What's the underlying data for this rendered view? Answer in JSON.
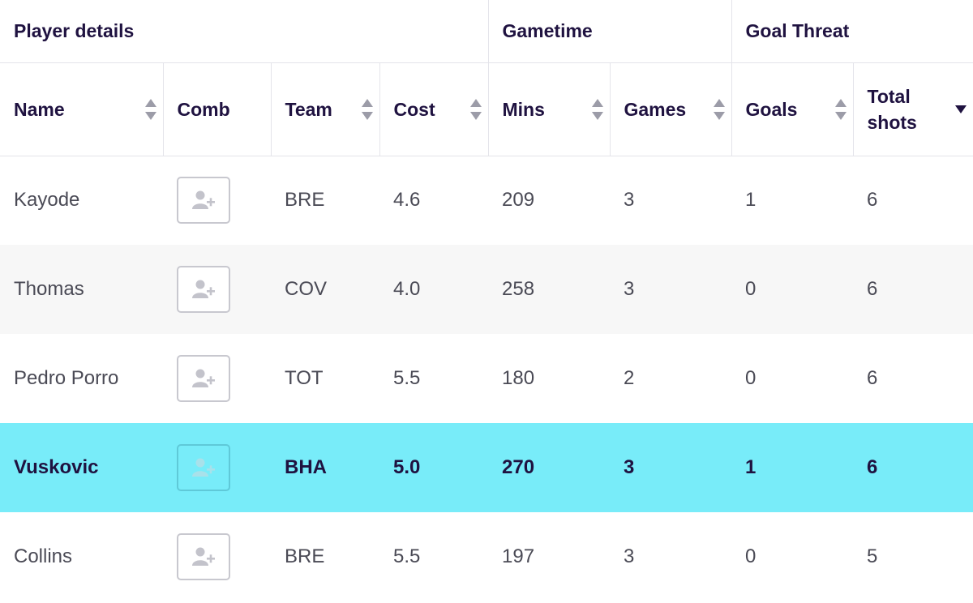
{
  "groups": {
    "player_details": "Player details",
    "gametime": "Gametime",
    "goal_threat": "Goal Threat"
  },
  "columns": {
    "name": "Name",
    "comb": "Comb",
    "team": "Team",
    "cost": "Cost",
    "mins": "Mins",
    "games": "Games",
    "goals": "Goals",
    "total_shots_line1": "Total",
    "total_shots_line2": "shots"
  },
  "sort": {
    "active_column": "total_shots",
    "direction": "descending"
  },
  "icons": {
    "sort": "sort-arrows-icon",
    "comb": "add-user-icon"
  },
  "colors": {
    "highlight_row": "#78ecf9",
    "header_text": "#1f1240",
    "alt_row": "#f7f7f7"
  },
  "rows": [
    {
      "name": "Kayode",
      "team": "BRE",
      "cost": "4.6",
      "mins": "209",
      "games": "3",
      "goals": "1",
      "shots": "6"
    },
    {
      "name": "Thomas",
      "team": "COV",
      "cost": "4.0",
      "mins": "258",
      "games": "3",
      "goals": "0",
      "shots": "6"
    },
    {
      "name": "Pedro Porro",
      "team": "TOT",
      "cost": "5.5",
      "mins": "180",
      "games": "2",
      "goals": "0",
      "shots": "6"
    },
    {
      "name": "Vuskovic",
      "team": "BHA",
      "cost": "5.0",
      "mins": "270",
      "games": "3",
      "goals": "1",
      "shots": "6"
    },
    {
      "name": "Collins",
      "team": "BRE",
      "cost": "5.5",
      "mins": "197",
      "games": "3",
      "goals": "0",
      "shots": "5"
    }
  ]
}
